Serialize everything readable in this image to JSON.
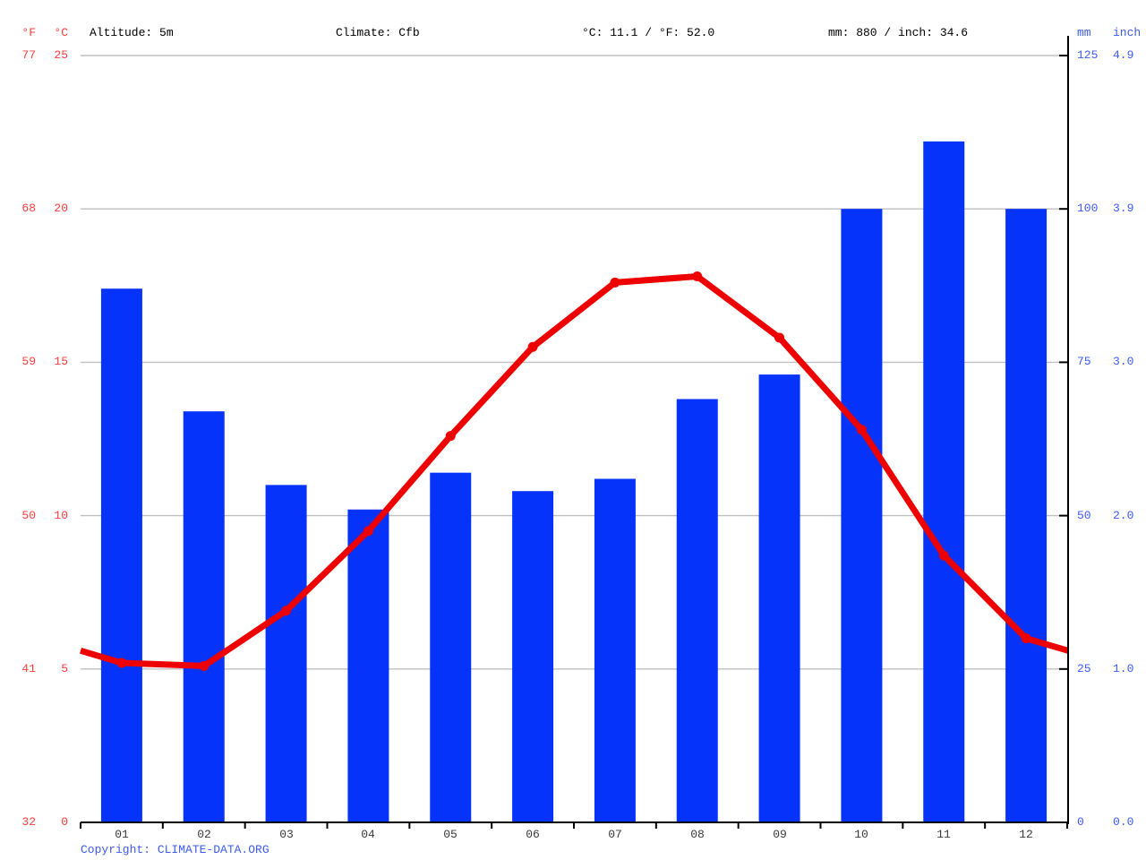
{
  "header": {
    "fahrenheit_label": "°F",
    "celsius_label": "°C",
    "altitude": "Altitude: 5m",
    "climate": "Climate: Cfb",
    "temperature_summary": "°C: 11.1 / °F: 52.0",
    "precipitation_summary": "mm: 880 / inch: 34.6",
    "mm_label": "mm",
    "inch_label": "inch"
  },
  "footer": {
    "copyright": "Copyright: CLIMATE-DATA.ORG"
  },
  "colors": {
    "bar_blue": "#0533fa",
    "line_red": "#ee0000",
    "red_text": "#ff3b3b",
    "blue_text": "#3d5bf0",
    "grid": "#c0c0c0",
    "axis": "#000000",
    "month_text": "#3a3a3a"
  },
  "chart_data": {
    "type": "bar",
    "title": "Climate graph (climograph): monthly precipitation bars and mean temperature line",
    "categories": [
      "01",
      "02",
      "03",
      "04",
      "05",
      "06",
      "07",
      "08",
      "09",
      "10",
      "11",
      "12"
    ],
    "series": [
      {
        "name": "Precipitation (mm)",
        "type": "bar",
        "values": [
          87,
          67,
          55,
          51,
          57,
          54,
          56,
          69,
          73,
          100,
          111,
          100
        ]
      },
      {
        "name": "Mean temperature (°C)",
        "type": "line",
        "values": [
          5.2,
          5.1,
          6.9,
          9.5,
          12.6,
          15.5,
          17.6,
          17.8,
          15.8,
          12.8,
          8.7,
          6.0
        ]
      }
    ],
    "line_edge_values": {
      "left": 5.6,
      "right": 5.6
    },
    "left_axis": {
      "ticks_c": [
        25,
        20,
        15,
        10,
        5,
        0
      ],
      "ticks_f": [
        77,
        68,
        59,
        50,
        41,
        32
      ],
      "range_c": [
        0,
        25
      ]
    },
    "right_axis": {
      "ticks_mm": [
        125,
        100,
        75,
        50,
        25,
        0
      ],
      "ticks_inch": [
        "4.9",
        "3.9",
        "3.0",
        "2.0",
        "1.0",
        "0.0"
      ],
      "range_mm": [
        0,
        125
      ]
    },
    "grid": true,
    "legend": "none",
    "annotations": {
      "altitude": "Altitude: 5m",
      "climate_class": "Cfb",
      "annual_mean_temp_c": 11.1,
      "annual_mean_temp_f": 52.0,
      "annual_precip_mm": 880,
      "annual_precip_inch": 34.6
    }
  }
}
